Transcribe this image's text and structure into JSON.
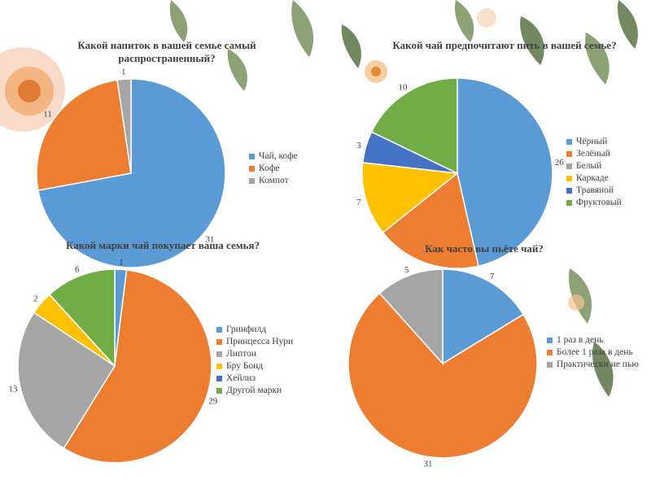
{
  "chart_data": [
    {
      "type": "pie",
      "title": "Какой напиток в вашей семье самый распространенный?",
      "categories": [
        "Чай, кофе",
        "Кофе",
        "Компот"
      ],
      "values": [
        31,
        11,
        1
      ],
      "colors": [
        "#5b9bd5",
        "#ed7d31",
        "#a5a5a5"
      ],
      "legend_position": "right"
    },
    {
      "type": "pie",
      "title": "Какой чай предпочитают пить в вашей семье?",
      "categories": [
        "Чёрный",
        "Зелёный",
        "Белый",
        "Каркаде",
        "Травяной",
        "Фруктовый"
      ],
      "values": [
        26,
        10,
        0,
        7,
        3,
        10
      ],
      "labels": [
        "26",
        "",
        "",
        "7",
        "3",
        "10"
      ],
      "colors": [
        "#5b9bd5",
        "#ed7d31",
        "#a5a5a5",
        "#ffc000",
        "#4472c4",
        "#70ad47"
      ],
      "legend_position": "right"
    },
    {
      "type": "pie",
      "title": "Какой марки чай покупает ваша семья?",
      "categories": [
        "Гринфилд",
        "Принцесса Нури",
        "Липтон",
        "Бру Бонд",
        "Хейлиз",
        "Другой марки"
      ],
      "values": [
        1,
        29,
        13,
        2,
        0,
        6
      ],
      "labels": [
        "1",
        "29",
        "13",
        "2",
        "",
        "6"
      ],
      "colors": [
        "#5b9bd5",
        "#ed7d31",
        "#a5a5a5",
        "#ffc000",
        "#4472c4",
        "#70ad47"
      ],
      "legend_position": "right"
    },
    {
      "type": "pie",
      "title": "Как часто вы пьёте чай?",
      "categories": [
        "1 раз в день",
        "Более 1 раза в день",
        "Практически не пью"
      ],
      "values": [
        7,
        31,
        5
      ],
      "colors": [
        "#5b9bd5",
        "#ed7d31",
        "#a5a5a5"
      ],
      "legend_position": "right"
    }
  ]
}
